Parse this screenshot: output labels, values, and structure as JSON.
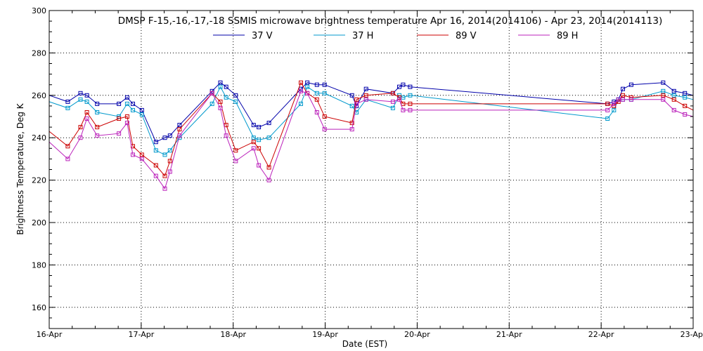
{
  "chart_data": {
    "type": "line",
    "title": "DMSP F-15,-16,-17,-18 SSMIS microwave brightness temperature Apr 16, 2014(2014106) - Apr 23, 2014(2014113)",
    "xlabel": "Date (EST)",
    "ylabel": "Brightness Temperature, Deg K",
    "xlim": [
      "2014-04-16 00:00",
      "2014-04-23 00:00"
    ],
    "ylim": [
      150,
      300
    ],
    "x_ticks": [
      "16-Apr",
      "17-Apr",
      "18-Apr",
      "19-Apr",
      "20-Apr",
      "21-Apr",
      "22-Apr",
      "23-Apr"
    ],
    "y_ticks": [
      160,
      180,
      200,
      220,
      240,
      260,
      280,
      300
    ],
    "grid": true,
    "legend_position": "top-center",
    "series": [
      {
        "name": "37 V",
        "color": "#0000aa",
        "points": [
          [
            "2014-04-16 00:00",
            260
          ],
          [
            "2014-04-16 04:50",
            257
          ],
          [
            "2014-04-16 08:10",
            261
          ],
          [
            "2014-04-16 09:50",
            260
          ],
          [
            "2014-04-16 12:30",
            256
          ],
          [
            "2014-04-16 18:10",
            256
          ],
          [
            "2014-04-16 20:20",
            259
          ],
          [
            "2014-04-16 21:50",
            256
          ],
          [
            "2014-04-17 00:10",
            253
          ],
          [
            "2014-04-17 03:50",
            238
          ],
          [
            "2014-04-17 06:10",
            240
          ],
          [
            "2014-04-17 07:30",
            241
          ],
          [
            "2014-04-17 10:00",
            246
          ],
          [
            "2014-04-17 18:30",
            262
          ],
          [
            "2014-04-17 20:40",
            266
          ],
          [
            "2014-04-17 22:10",
            264
          ],
          [
            "2014-04-18 00:40",
            260
          ],
          [
            "2014-04-18 05:20",
            246
          ],
          [
            "2014-04-18 06:40",
            245
          ],
          [
            "2014-04-18 09:20",
            247
          ],
          [
            "2014-04-18 17:40",
            263
          ],
          [
            "2014-04-18 19:20",
            266
          ],
          [
            "2014-04-18 21:50",
            265
          ],
          [
            "2014-04-18 23:50",
            265
          ],
          [
            "2014-04-19 07:00",
            260
          ],
          [
            "2014-04-19 08:10",
            255
          ],
          [
            "2014-04-19 10:40",
            263
          ],
          [
            "2014-04-19 17:40",
            261
          ],
          [
            "2014-04-19 19:20",
            264
          ],
          [
            "2014-04-19 20:20",
            265
          ],
          [
            "2014-04-19 22:10",
            264
          ],
          [
            "2014-04-22 01:40",
            256
          ],
          [
            "2014-04-22 03:20",
            257
          ],
          [
            "2014-04-22 04:30",
            258
          ],
          [
            "2014-04-22 05:40",
            263
          ],
          [
            "2014-04-22 07:50",
            265
          ],
          [
            "2014-04-22 16:10",
            266
          ],
          [
            "2014-04-22 19:00",
            262
          ],
          [
            "2014-04-22 21:50",
            261
          ],
          [
            "2014-04-23 00:00",
            260
          ]
        ]
      },
      {
        "name": "37 H",
        "color": "#0099cc",
        "points": [
          [
            "2014-04-16 00:00",
            257
          ],
          [
            "2014-04-16 04:50",
            254
          ],
          [
            "2014-04-16 08:10",
            258
          ],
          [
            "2014-04-16 09:50",
            257
          ],
          [
            "2014-04-16 12:30",
            252
          ],
          [
            "2014-04-16 18:10",
            250
          ],
          [
            "2014-04-16 20:20",
            256
          ],
          [
            "2014-04-16 21:50",
            253
          ],
          [
            "2014-04-17 00:10",
            251
          ],
          [
            "2014-04-17 03:50",
            234
          ],
          [
            "2014-04-17 06:10",
            232
          ],
          [
            "2014-04-17 07:30",
            234
          ],
          [
            "2014-04-17 10:00",
            240
          ],
          [
            "2014-04-17 18:30",
            256
          ],
          [
            "2014-04-17 20:40",
            264
          ],
          [
            "2014-04-17 22:10",
            259
          ],
          [
            "2014-04-18 00:40",
            257
          ],
          [
            "2014-04-18 05:20",
            240
          ],
          [
            "2014-04-18 06:40",
            239
          ],
          [
            "2014-04-18 09:20",
            240
          ],
          [
            "2014-04-18 17:40",
            256
          ],
          [
            "2014-04-18 19:20",
            264
          ],
          [
            "2014-04-18 21:50",
            261
          ],
          [
            "2014-04-18 23:50",
            261
          ],
          [
            "2014-04-19 07:00",
            255
          ],
          [
            "2014-04-19 08:10",
            252
          ],
          [
            "2014-04-19 10:40",
            258
          ],
          [
            "2014-04-19 17:40",
            254
          ],
          [
            "2014-04-19 19:20",
            260
          ],
          [
            "2014-04-19 20:20",
            259
          ],
          [
            "2014-04-19 22:10",
            260
          ],
          [
            "2014-04-22 01:40",
            249
          ],
          [
            "2014-04-22 03:20",
            253
          ],
          [
            "2014-04-22 04:30",
            258
          ],
          [
            "2014-04-22 05:40",
            258
          ],
          [
            "2014-04-22 07:50",
            258
          ],
          [
            "2014-04-22 16:10",
            262
          ],
          [
            "2014-04-22 19:00",
            260
          ],
          [
            "2014-04-22 21:50",
            259
          ],
          [
            "2014-04-23 00:00",
            258
          ]
        ]
      },
      {
        "name": "89 V",
        "color": "#cc0000",
        "points": [
          [
            "2014-04-16 00:00",
            243
          ],
          [
            "2014-04-16 04:50",
            236
          ],
          [
            "2014-04-16 08:10",
            245
          ],
          [
            "2014-04-16 09:50",
            252
          ],
          [
            "2014-04-16 12:30",
            245
          ],
          [
            "2014-04-16 18:10",
            249
          ],
          [
            "2014-04-16 20:20",
            250
          ],
          [
            "2014-04-16 21:50",
            236
          ],
          [
            "2014-04-17 00:10",
            232
          ],
          [
            "2014-04-17 03:50",
            227
          ],
          [
            "2014-04-17 06:10",
            222
          ],
          [
            "2014-04-17 07:30",
            229
          ],
          [
            "2014-04-17 10:00",
            244
          ],
          [
            "2014-04-17 18:30",
            261
          ],
          [
            "2014-04-17 20:40",
            257
          ],
          [
            "2014-04-17 22:10",
            246
          ],
          [
            "2014-04-18 00:40",
            234
          ],
          [
            "2014-04-18 05:20",
            238
          ],
          [
            "2014-04-18 06:40",
            235
          ],
          [
            "2014-04-18 09:20",
            226
          ],
          [
            "2014-04-18 17:40",
            266
          ],
          [
            "2014-04-18 19:20",
            261
          ],
          [
            "2014-04-18 21:50",
            258
          ],
          [
            "2014-04-18 23:50",
            250
          ],
          [
            "2014-04-19 07:00",
            247
          ],
          [
            "2014-04-19 08:10",
            258
          ],
          [
            "2014-04-19 10:40",
            260
          ],
          [
            "2014-04-19 17:40",
            261
          ],
          [
            "2014-04-19 19:20",
            259
          ],
          [
            "2014-04-19 20:20",
            256
          ],
          [
            "2014-04-19 22:10",
            256
          ],
          [
            "2014-04-22 01:40",
            256
          ],
          [
            "2014-04-22 03:20",
            255
          ],
          [
            "2014-04-22 04:30",
            257
          ],
          [
            "2014-04-22 05:40",
            260
          ],
          [
            "2014-04-22 07:50",
            259
          ],
          [
            "2014-04-22 16:10",
            260
          ],
          [
            "2014-04-22 19:00",
            258
          ],
          [
            "2014-04-22 21:50",
            255
          ],
          [
            "2014-04-23 00:00",
            253
          ]
        ]
      },
      {
        "name": "89 H",
        "color": "#bb22bb",
        "points": [
          [
            "2014-04-16 00:00",
            238
          ],
          [
            "2014-04-16 04:50",
            230
          ],
          [
            "2014-04-16 08:10",
            240
          ],
          [
            "2014-04-16 09:50",
            249
          ],
          [
            "2014-04-16 12:30",
            241
          ],
          [
            "2014-04-16 18:10",
            242
          ],
          [
            "2014-04-16 20:20",
            247
          ],
          [
            "2014-04-16 21:50",
            232
          ],
          [
            "2014-04-17 00:10",
            230
          ],
          [
            "2014-04-17 03:50",
            222
          ],
          [
            "2014-04-17 06:10",
            216
          ],
          [
            "2014-04-17 07:30",
            224
          ],
          [
            "2014-04-17 10:00",
            241
          ],
          [
            "2014-04-17 18:30",
            261
          ],
          [
            "2014-04-17 20:40",
            254
          ],
          [
            "2014-04-17 22:10",
            241
          ],
          [
            "2014-04-18 00:40",
            229
          ],
          [
            "2014-04-18 05:20",
            235
          ],
          [
            "2014-04-18 06:40",
            227
          ],
          [
            "2014-04-18 09:20",
            220
          ],
          [
            "2014-04-18 17:40",
            262
          ],
          [
            "2014-04-18 19:20",
            261
          ],
          [
            "2014-04-18 21:50",
            252
          ],
          [
            "2014-04-18 23:50",
            244
          ],
          [
            "2014-04-19 07:00",
            244
          ],
          [
            "2014-04-19 08:10",
            256
          ],
          [
            "2014-04-19 10:40",
            258
          ],
          [
            "2014-04-19 17:40",
            257
          ],
          [
            "2014-04-19 19:20",
            258
          ],
          [
            "2014-04-19 20:20",
            253
          ],
          [
            "2014-04-19 22:10",
            253
          ],
          [
            "2014-04-22 01:40",
            253
          ],
          [
            "2014-04-22 03:20",
            256
          ],
          [
            "2014-04-22 04:30",
            258
          ],
          [
            "2014-04-22 05:40",
            258
          ],
          [
            "2014-04-22 07:50",
            258
          ],
          [
            "2014-04-22 16:10",
            258
          ],
          [
            "2014-04-22 19:00",
            253
          ],
          [
            "2014-04-22 21:50",
            251
          ],
          [
            "2014-04-23 00:00",
            250
          ]
        ]
      }
    ]
  }
}
